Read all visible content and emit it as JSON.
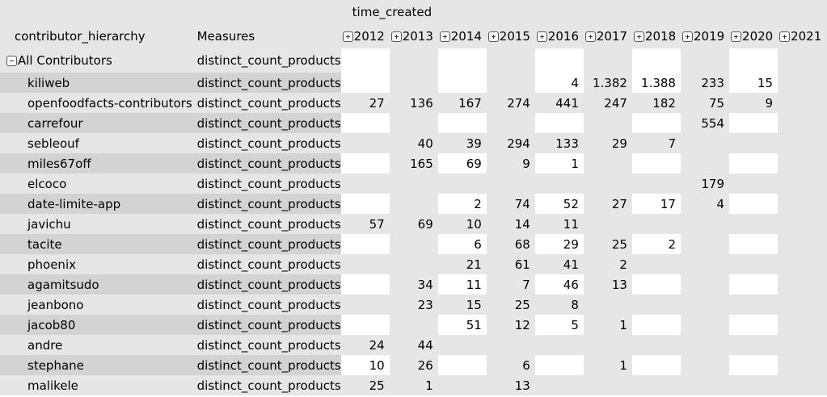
{
  "header": {
    "column_dimension": "time_created",
    "row_dimension": "contributor_hierarchy",
    "measures_label": "Measures",
    "years": [
      "2012",
      "2013",
      "2014",
      "2015",
      "2016",
      "2017",
      "2018",
      "2019",
      "2020",
      "2021"
    ]
  },
  "root": {
    "label": "All Contributors",
    "measure": "distinct_count_products"
  },
  "rows": [
    {
      "label": "kiliweb",
      "measure": "distinct_count_products",
      "values": [
        "",
        "",
        "",
        "",
        "4",
        "1.382",
        "1.388",
        "233",
        "15",
        ""
      ]
    },
    {
      "label": "openfoodfacts-contributors",
      "measure": "distinct_count_products",
      "values": [
        "27",
        "136",
        "167",
        "274",
        "441",
        "247",
        "182",
        "75",
        "9",
        ""
      ]
    },
    {
      "label": "carrefour",
      "measure": "distinct_count_products",
      "values": [
        "",
        "",
        "",
        "",
        "",
        "",
        "",
        "554",
        "",
        ""
      ]
    },
    {
      "label": "sebleouf",
      "measure": "distinct_count_products",
      "values": [
        "",
        "40",
        "39",
        "294",
        "133",
        "29",
        "7",
        "",
        "",
        ""
      ]
    },
    {
      "label": "miles67off",
      "measure": "distinct_count_products",
      "values": [
        "",
        "165",
        "69",
        "9",
        "1",
        "",
        "",
        "",
        "",
        ""
      ]
    },
    {
      "label": "elcoco",
      "measure": "distinct_count_products",
      "values": [
        "",
        "",
        "",
        "",
        "",
        "",
        "",
        "179",
        "",
        ""
      ]
    },
    {
      "label": "date-limite-app",
      "measure": "distinct_count_products",
      "values": [
        "",
        "",
        "2",
        "74",
        "52",
        "27",
        "17",
        "4",
        "",
        ""
      ]
    },
    {
      "label": "javichu",
      "measure": "distinct_count_products",
      "values": [
        "57",
        "69",
        "10",
        "14",
        "11",
        "",
        "",
        "",
        "",
        ""
      ]
    },
    {
      "label": "tacite",
      "measure": "distinct_count_products",
      "values": [
        "",
        "",
        "6",
        "68",
        "29",
        "25",
        "2",
        "",
        "",
        ""
      ]
    },
    {
      "label": "phoenix",
      "measure": "distinct_count_products",
      "values": [
        "",
        "",
        "21",
        "61",
        "41",
        "2",
        "",
        "",
        "",
        ""
      ]
    },
    {
      "label": "agamitsudo",
      "measure": "distinct_count_products",
      "values": [
        "",
        "34",
        "11",
        "7",
        "46",
        "13",
        "",
        "",
        "",
        ""
      ]
    },
    {
      "label": "jeanbono",
      "measure": "distinct_count_products",
      "values": [
        "",
        "23",
        "15",
        "25",
        "8",
        "",
        "",
        "",
        "",
        ""
      ]
    },
    {
      "label": "jacob80",
      "measure": "distinct_count_products",
      "values": [
        "",
        "",
        "51",
        "12",
        "5",
        "1",
        "",
        "",
        "",
        ""
      ]
    },
    {
      "label": "andre",
      "measure": "distinct_count_products",
      "values": [
        "24",
        "44",
        "",
        "",
        "",
        "",
        "",
        "",
        "",
        ""
      ]
    },
    {
      "label": "stephane",
      "measure": "distinct_count_products",
      "values": [
        "10",
        "26",
        "",
        "6",
        "",
        "1",
        "",
        "",
        "",
        ""
      ]
    },
    {
      "label": "malikele",
      "measure": "distinct_count_products",
      "values": [
        "25",
        "1",
        "",
        "13",
        "",
        "",
        "",
        "",
        "",
        ""
      ]
    }
  ],
  "icons": {
    "expand": "plus-box-icon",
    "collapse": "minus-box-icon"
  }
}
